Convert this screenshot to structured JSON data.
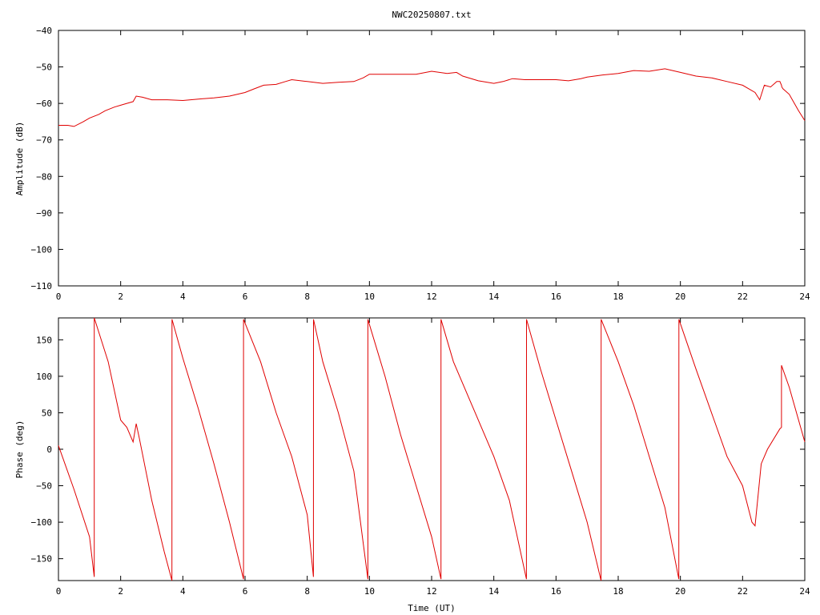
{
  "chart_data": [
    {
      "type": "line",
      "title": "NWC20250807.txt",
      "xlabel": "",
      "ylabel": "Amplitude (dB)",
      "xlim": [
        0,
        24
      ],
      "ylim": [
        -110,
        -40
      ],
      "x_ticks": [
        0,
        2,
        4,
        6,
        8,
        10,
        12,
        14,
        16,
        18,
        20,
        22,
        24
      ],
      "y_ticks": [
        -110,
        -100,
        -90,
        -80,
        -70,
        -60,
        -50,
        -40
      ],
      "grid": false,
      "series": [
        {
          "color": "#e00000",
          "x": [
            0,
            0.3,
            0.5,
            0.8,
            1.0,
            1.3,
            1.5,
            1.8,
            2.0,
            2.2,
            2.4,
            2.5,
            2.7,
            3.0,
            3.5,
            4.0,
            4.5,
            5.0,
            5.5,
            6.0,
            6.3,
            6.6,
            7.0,
            7.3,
            7.5,
            8.0,
            8.5,
            9.0,
            9.5,
            9.8,
            10.0,
            10.5,
            11.0,
            11.5,
            12.0,
            12.5,
            12.8,
            13.0,
            13.5,
            14.0,
            14.3,
            14.6,
            15.0,
            15.5,
            16.0,
            16.4,
            16.8,
            17.0,
            17.5,
            18.0,
            18.5,
            19.0,
            19.5,
            20.0,
            20.5,
            21.0,
            21.5,
            22.0,
            22.2,
            22.4,
            22.55,
            22.7,
            22.9,
            23.1,
            23.2,
            23.25,
            23.26,
            23.3,
            23.5,
            23.8,
            24.0
          ],
          "y": [
            -66,
            -66,
            -66.3,
            -65,
            -64,
            -63,
            -62,
            -61,
            -60.5,
            -60,
            -59.5,
            -58,
            -58.3,
            -59,
            -59,
            -59.2,
            -58.8,
            -58.5,
            -58,
            -57,
            -56,
            -55,
            -54.8,
            -54,
            -53.5,
            -54,
            -54.5,
            -54.2,
            -54,
            -53,
            -52,
            -52,
            -52,
            -52,
            -51.2,
            -51.8,
            -51.5,
            -52.5,
            -53.8,
            -54.5,
            -54,
            -53.2,
            -53.5,
            -53.5,
            -53.5,
            -53.8,
            -53.2,
            -52.8,
            -52.2,
            -51.8,
            -51,
            -51.2,
            -50.5,
            -51.5,
            -52.5,
            -53,
            -54,
            -55,
            -56,
            -57,
            -59,
            -55,
            -55.5,
            -54,
            -54,
            -55,
            -55.5,
            -56,
            -57.5,
            -62,
            -64.7
          ]
        }
      ]
    },
    {
      "type": "line",
      "title": "",
      "xlabel": "Time (UT)",
      "ylabel": "Phase (deg)",
      "xlim": [
        0,
        24
      ],
      "ylim": [
        -180,
        180
      ],
      "x_ticks": [
        0,
        2,
        4,
        6,
        8,
        10,
        12,
        14,
        16,
        18,
        20,
        22,
        24
      ],
      "y_ticks": [
        -150,
        -100,
        -50,
        0,
        50,
        100,
        150
      ],
      "grid": false,
      "series": [
        {
          "color": "#e00000",
          "x": [
            0,
            0.5,
            1.0,
            1.15,
            1.151,
            1.6,
            2.0,
            2.2,
            2.4,
            2.5,
            2.6,
            3.0,
            3.4,
            3.65,
            3.651,
            4.0,
            4.5,
            5.0,
            5.5,
            5.95,
            5.951,
            6.5,
            7.0,
            7.5,
            8.0,
            8.2,
            8.201,
            8.5,
            9.0,
            9.5,
            9.95,
            9.951,
            10.5,
            11.0,
            11.5,
            12.0,
            12.3,
            12.301,
            12.7,
            13.5,
            14.0,
            14.5,
            15.05,
            15.051,
            15.5,
            16.0,
            16.5,
            17.0,
            17.45,
            17.451,
            18.0,
            18.5,
            19.0,
            19.5,
            19.95,
            19.951,
            20.5,
            21.0,
            21.5,
            22.0,
            22.3,
            22.4,
            22.6,
            22.8,
            23.2,
            23.25,
            23.251,
            23.5,
            24.0
          ],
          "y": [
            5,
            -55,
            -120,
            -175,
            180,
            120,
            40,
            30,
            10,
            35,
            15,
            -70,
            -140,
            -180,
            178,
            125,
            55,
            -20,
            -100,
            -178,
            178,
            120,
            50,
            -10,
            -90,
            -175,
            178,
            120,
            50,
            -30,
            -178,
            178,
            100,
            20,
            -50,
            -120,
            -178,
            178,
            120,
            40,
            -10,
            -70,
            -178,
            178,
            110,
            40,
            -30,
            -100,
            -180,
            178,
            120,
            60,
            -10,
            -80,
            -178,
            178,
            110,
            50,
            -10,
            -50,
            -100,
            -105,
            -20,
            0,
            28,
            30,
            115,
            85,
            10
          ]
        }
      ]
    }
  ]
}
